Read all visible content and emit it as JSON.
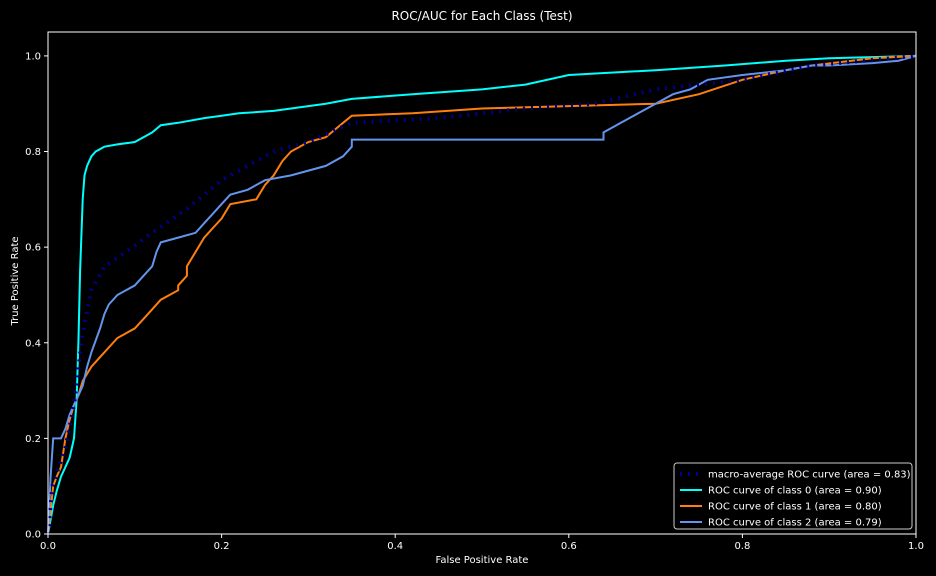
{
  "chart_data": {
    "type": "line",
    "title": "ROC/AUC for Each Class (Test)",
    "xlabel": "False Positive Rate",
    "ylabel": "True Positive Rate",
    "xlim": [
      0.0,
      1.0
    ],
    "ylim": [
      0.0,
      1.05
    ],
    "xticks": [
      "0.0",
      "0.2",
      "0.4",
      "0.6",
      "0.8",
      "1.0"
    ],
    "yticks": [
      "0.0",
      "0.2",
      "0.4",
      "0.6",
      "0.8",
      "1.0"
    ],
    "grid": false,
    "legend_position": "lower-right",
    "series": [
      {
        "name": "macro-average ROC curve (area = 0.83)",
        "color": "#00008b",
        "style": "dotted",
        "points": [
          [
            0,
            0
          ],
          [
            0.005,
            0.1
          ],
          [
            0.02,
            0.18
          ],
          [
            0.03,
            0.27
          ],
          [
            0.04,
            0.42
          ],
          [
            0.05,
            0.51
          ],
          [
            0.065,
            0.56
          ],
          [
            0.09,
            0.59
          ],
          [
            0.12,
            0.63
          ],
          [
            0.16,
            0.68
          ],
          [
            0.2,
            0.74
          ],
          [
            0.26,
            0.8
          ],
          [
            0.3,
            0.82
          ],
          [
            0.35,
            0.86
          ],
          [
            0.45,
            0.87
          ],
          [
            0.55,
            0.89
          ],
          [
            0.63,
            0.9
          ],
          [
            0.7,
            0.93
          ],
          [
            0.8,
            0.95
          ],
          [
            0.88,
            0.98
          ],
          [
            1.0,
            1.0
          ]
        ]
      },
      {
        "name": "ROC curve of class 0 (area = 0.90)",
        "color": "#00ffff",
        "style": "solid",
        "points": [
          [
            0,
            0
          ],
          [
            0.003,
            0.03
          ],
          [
            0.006,
            0.06
          ],
          [
            0.01,
            0.09
          ],
          [
            0.015,
            0.12
          ],
          [
            0.02,
            0.14
          ],
          [
            0.025,
            0.16
          ],
          [
            0.03,
            0.2
          ],
          [
            0.033,
            0.28
          ],
          [
            0.035,
            0.4
          ],
          [
            0.037,
            0.55
          ],
          [
            0.04,
            0.7
          ],
          [
            0.042,
            0.75
          ],
          [
            0.045,
            0.77
          ],
          [
            0.05,
            0.79
          ],
          [
            0.055,
            0.8
          ],
          [
            0.065,
            0.81
          ],
          [
            0.08,
            0.815
          ],
          [
            0.1,
            0.82
          ],
          [
            0.11,
            0.83
          ],
          [
            0.12,
            0.84
          ],
          [
            0.13,
            0.855
          ],
          [
            0.15,
            0.86
          ],
          [
            0.18,
            0.87
          ],
          [
            0.2,
            0.875
          ],
          [
            0.22,
            0.88
          ],
          [
            0.26,
            0.885
          ],
          [
            0.28,
            0.89
          ],
          [
            0.32,
            0.9
          ],
          [
            0.35,
            0.91
          ],
          [
            0.42,
            0.92
          ],
          [
            0.5,
            0.93
          ],
          [
            0.55,
            0.94
          ],
          [
            0.6,
            0.96
          ],
          [
            0.7,
            0.97
          ],
          [
            0.78,
            0.98
          ],
          [
            0.85,
            0.99
          ],
          [
            0.9,
            0.995
          ],
          [
            1.0,
            1.0
          ]
        ]
      },
      {
        "name": "ROC curve of class 1 (area = 0.80)",
        "color": "#ff7f0e",
        "style": "solid",
        "points": [
          [
            0,
            0
          ],
          [
            0.003,
            0.05
          ],
          [
            0.006,
            0.1
          ],
          [
            0.01,
            0.12
          ],
          [
            0.015,
            0.14
          ],
          [
            0.02,
            0.2
          ],
          [
            0.025,
            0.24
          ],
          [
            0.03,
            0.27
          ],
          [
            0.035,
            0.29
          ],
          [
            0.04,
            0.32
          ],
          [
            0.05,
            0.35
          ],
          [
            0.06,
            0.37
          ],
          [
            0.07,
            0.39
          ],
          [
            0.08,
            0.41
          ],
          [
            0.09,
            0.42
          ],
          [
            0.1,
            0.43
          ],
          [
            0.11,
            0.45
          ],
          [
            0.12,
            0.47
          ],
          [
            0.13,
            0.49
          ],
          [
            0.14,
            0.5
          ],
          [
            0.15,
            0.51
          ],
          [
            0.15,
            0.52
          ],
          [
            0.16,
            0.54
          ],
          [
            0.16,
            0.56
          ],
          [
            0.17,
            0.59
          ],
          [
            0.18,
            0.62
          ],
          [
            0.19,
            0.64
          ],
          [
            0.2,
            0.66
          ],
          [
            0.21,
            0.69
          ],
          [
            0.24,
            0.7
          ],
          [
            0.25,
            0.73
          ],
          [
            0.26,
            0.75
          ],
          [
            0.27,
            0.78
          ],
          [
            0.28,
            0.8
          ],
          [
            0.3,
            0.82
          ],
          [
            0.32,
            0.83
          ],
          [
            0.34,
            0.86
          ],
          [
            0.35,
            0.875
          ],
          [
            0.42,
            0.88
          ],
          [
            0.5,
            0.89
          ],
          [
            0.6,
            0.895
          ],
          [
            0.7,
            0.9
          ],
          [
            0.75,
            0.92
          ],
          [
            0.8,
            0.95
          ],
          [
            0.85,
            0.97
          ],
          [
            0.88,
            0.98
          ],
          [
            0.95,
            0.995
          ],
          [
            1.0,
            1.0
          ]
        ]
      },
      {
        "name": "ROC curve of class 2 (area = 0.79)",
        "color": "#6495ed",
        "style": "solid",
        "points": [
          [
            0,
            0
          ],
          [
            0.003,
            0.12
          ],
          [
            0.006,
            0.2
          ],
          [
            0.015,
            0.2
          ],
          [
            0.02,
            0.22
          ],
          [
            0.025,
            0.25
          ],
          [
            0.03,
            0.27
          ],
          [
            0.035,
            0.29
          ],
          [
            0.04,
            0.31
          ],
          [
            0.045,
            0.35
          ],
          [
            0.05,
            0.38
          ],
          [
            0.06,
            0.43
          ],
          [
            0.065,
            0.46
          ],
          [
            0.07,
            0.48
          ],
          [
            0.08,
            0.5
          ],
          [
            0.1,
            0.52
          ],
          [
            0.11,
            0.54
          ],
          [
            0.12,
            0.56
          ],
          [
            0.125,
            0.59
          ],
          [
            0.13,
            0.61
          ],
          [
            0.15,
            0.62
          ],
          [
            0.17,
            0.63
          ],
          [
            0.18,
            0.65
          ],
          [
            0.19,
            0.67
          ],
          [
            0.2,
            0.69
          ],
          [
            0.21,
            0.71
          ],
          [
            0.23,
            0.72
          ],
          [
            0.25,
            0.74
          ],
          [
            0.28,
            0.75
          ],
          [
            0.3,
            0.76
          ],
          [
            0.32,
            0.77
          ],
          [
            0.34,
            0.79
          ],
          [
            0.35,
            0.81
          ],
          [
            0.35,
            0.825
          ],
          [
            0.45,
            0.825
          ],
          [
            0.55,
            0.825
          ],
          [
            0.64,
            0.825
          ],
          [
            0.64,
            0.84
          ],
          [
            0.66,
            0.86
          ],
          [
            0.68,
            0.88
          ],
          [
            0.7,
            0.9
          ],
          [
            0.72,
            0.92
          ],
          [
            0.74,
            0.93
          ],
          [
            0.76,
            0.95
          ],
          [
            0.8,
            0.96
          ],
          [
            0.85,
            0.97
          ],
          [
            0.88,
            0.98
          ],
          [
            0.9,
            0.98
          ],
          [
            0.95,
            0.985
          ],
          [
            0.98,
            0.99
          ],
          [
            1.0,
            1.0
          ]
        ]
      }
    ]
  }
}
